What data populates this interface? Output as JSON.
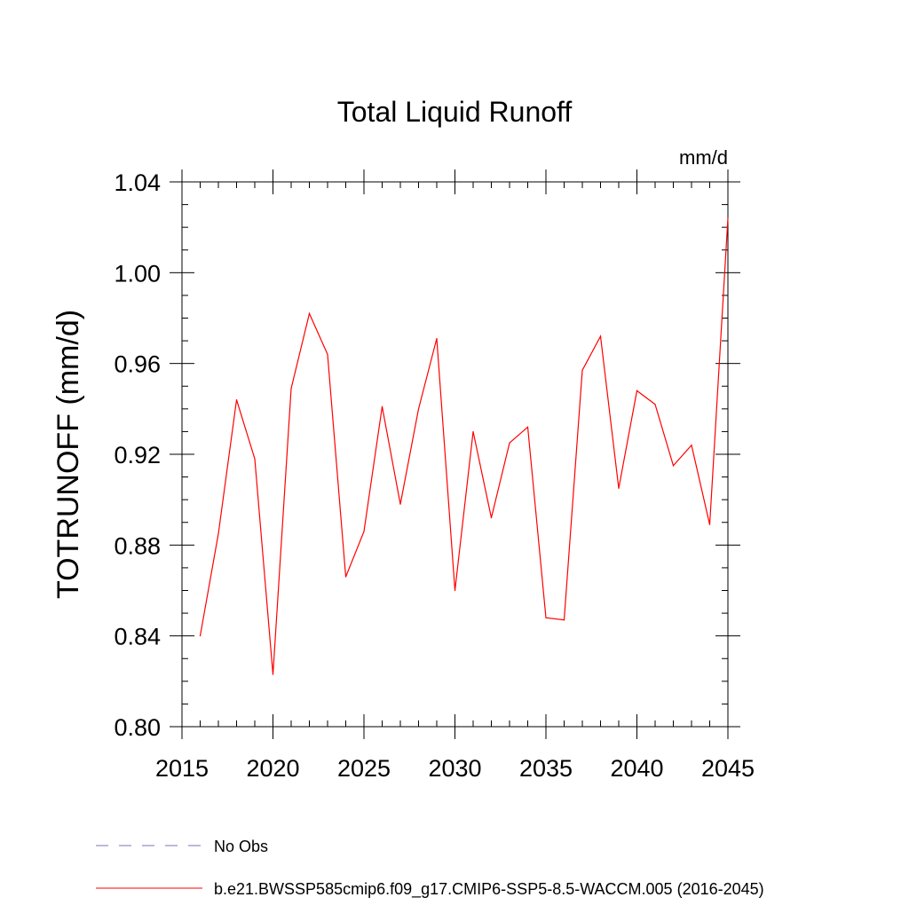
{
  "chart_data": {
    "type": "line",
    "title": "Total Liquid Runoff",
    "units_label": "mm/d",
    "ylabel": "TOTRUNOFF  (mm/d)",
    "xlabel": "",
    "xlim": [
      2015,
      2045
    ],
    "ylim": [
      0.8,
      1.04
    ],
    "x_ticks": [
      2015,
      2020,
      2025,
      2030,
      2035,
      2040,
      2045
    ],
    "x_tick_labels": [
      "2015",
      "2020",
      "2025",
      "2030",
      "2035",
      "2040",
      "2045"
    ],
    "y_ticks": [
      0.8,
      0.84,
      0.88,
      0.92,
      0.96,
      1.0,
      1.04
    ],
    "y_tick_labels": [
      "0.80",
      "0.84",
      "0.88",
      "0.92",
      "0.96",
      "1.00",
      "1.04"
    ],
    "grid": false,
    "legend_position": "bottom",
    "series": [
      {
        "name": "b.e21.BWSSP585cmip6.f09_g17.CMIP6-SSP5-8.5-WACCM.005 (2016-2045)",
        "color": "#ff0000",
        "style": "solid",
        "x": [
          2016,
          2017,
          2018,
          2019,
          2020,
          2021,
          2022,
          2023,
          2024,
          2025,
          2026,
          2027,
          2028,
          2029,
          2030,
          2031,
          2032,
          2033,
          2034,
          2035,
          2036,
          2037,
          2038,
          2039,
          2040,
          2041,
          2042,
          2043,
          2044,
          2045
        ],
        "values": [
          0.84,
          0.885,
          0.944,
          0.918,
          0.823,
          0.949,
          0.982,
          0.964,
          0.866,
          0.886,
          0.941,
          0.898,
          0.94,
          0.971,
          0.86,
          0.93,
          0.892,
          0.925,
          0.932,
          0.848,
          0.847,
          0.957,
          0.972,
          0.905,
          0.948,
          0.942,
          0.915,
          0.924,
          0.889,
          1.024
        ]
      }
    ],
    "legend": [
      {
        "label": "No Obs",
        "color": "#7b72b8",
        "style": "dashed"
      },
      {
        "label": "b.e21.BWSSP585cmip6.f09_g17.CMIP6-SSP5-8.5-WACCM.005 (2016-2045)",
        "color": "#ff0000",
        "style": "solid"
      }
    ]
  }
}
